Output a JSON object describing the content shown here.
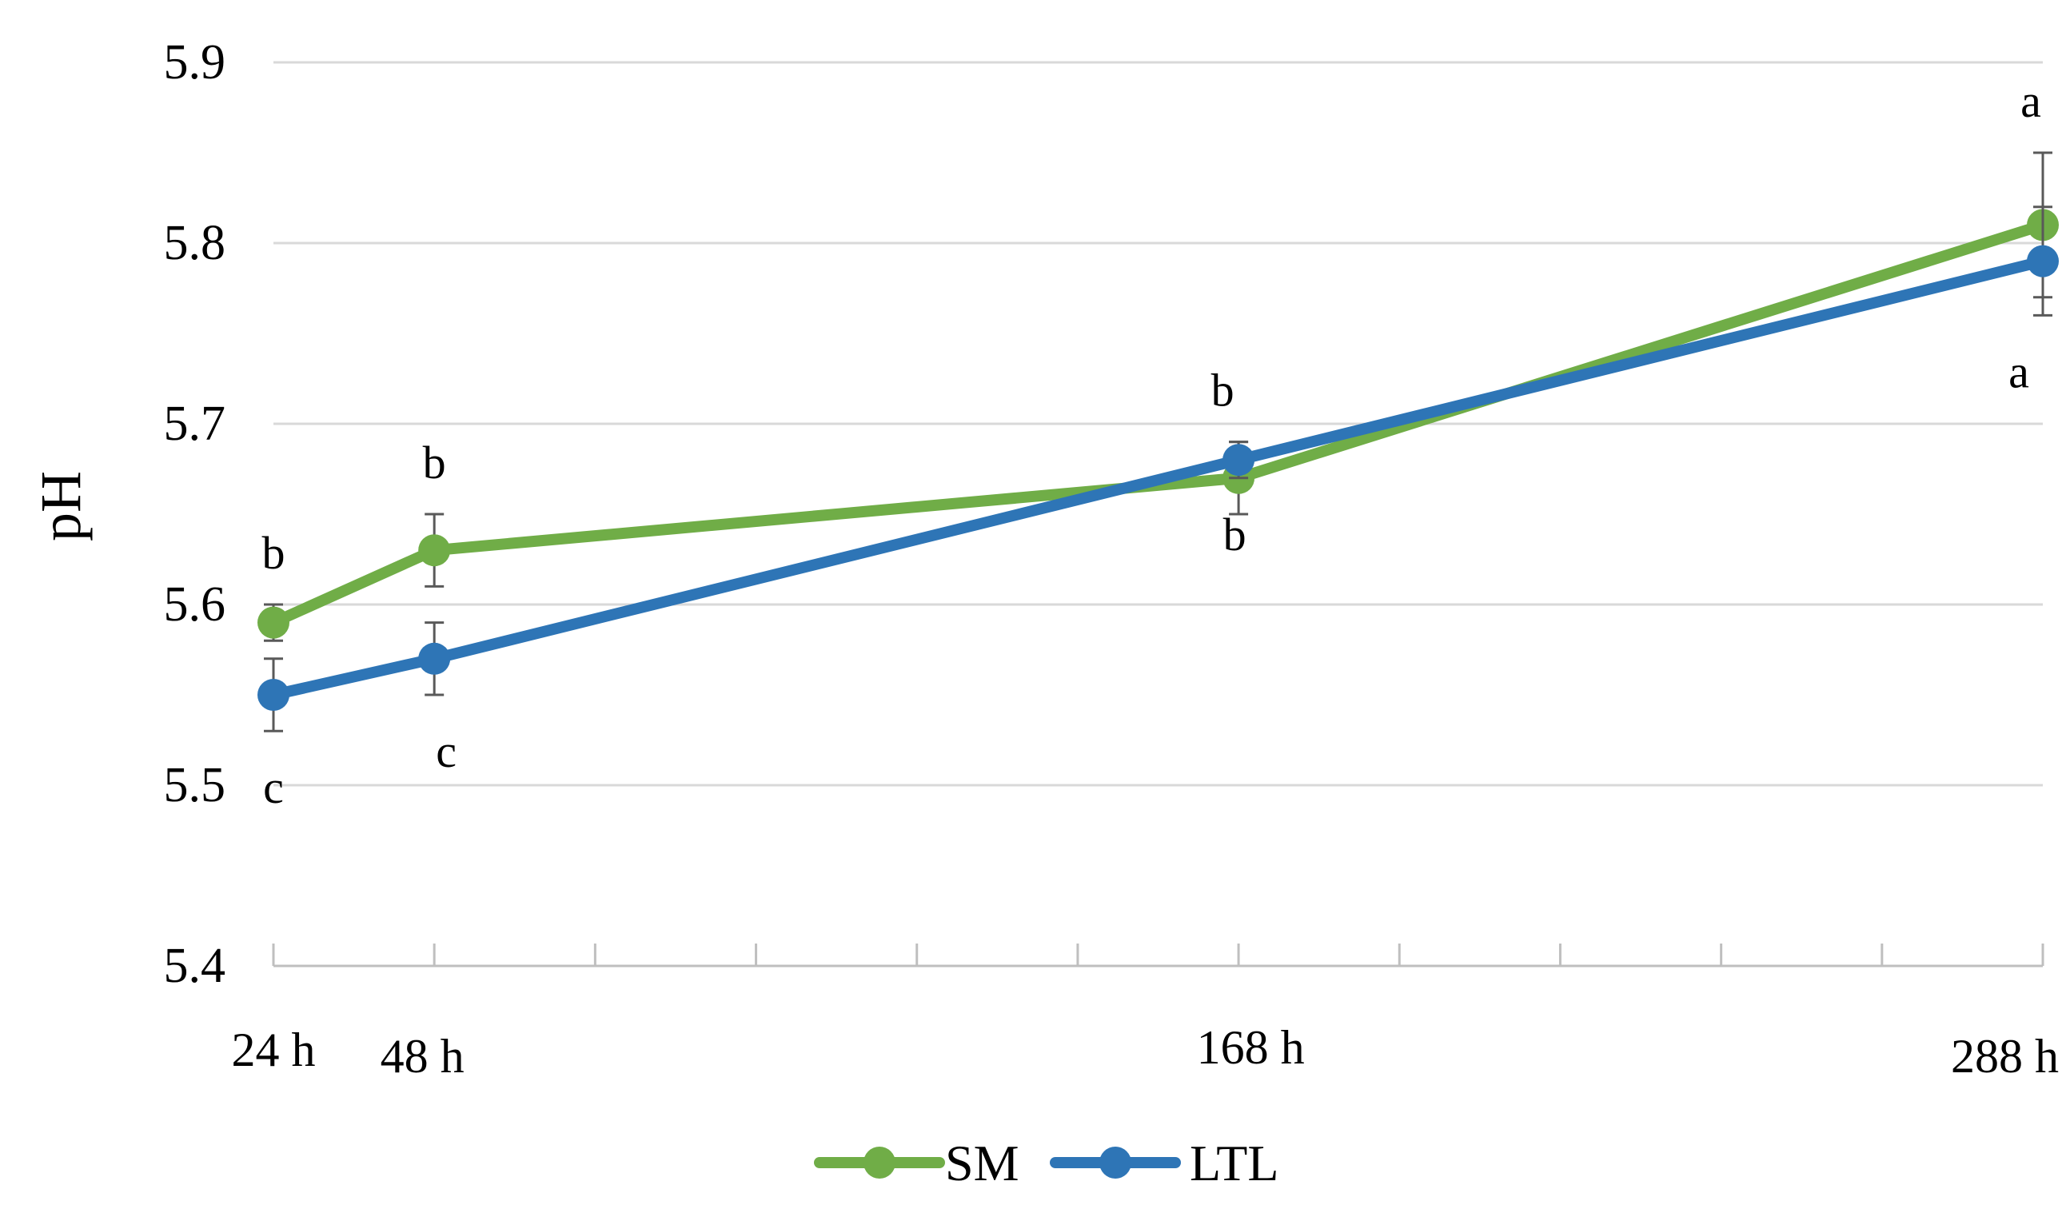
{
  "chart_data": {
    "type": "line",
    "title": "",
    "xlabel": "",
    "ylabel": "pH",
    "ylim": [
      5.4,
      5.9
    ],
    "yticks": [
      "5.4",
      "5.5",
      "5.6",
      "5.7",
      "5.8",
      "5.9"
    ],
    "xlim": [
      24,
      288
    ],
    "x": [
      24,
      48,
      168,
      288
    ],
    "categories": [
      "24 h",
      "48 h",
      "168 h",
      "288 h"
    ],
    "x_minor_ticks": [
      24,
      48,
      72,
      96,
      120,
      144,
      168,
      192,
      216,
      240,
      264,
      288
    ],
    "grid": true,
    "legend_position": "bottom-center",
    "series": [
      {
        "name": "SM",
        "color": "#70AD47",
        "values": [
          5.59,
          5.63,
          5.67,
          5.81
        ],
        "errors": [
          0.01,
          0.02,
          0.02,
          0.04
        ],
        "significance": [
          "b",
          "b",
          "b",
          "a"
        ],
        "label_side": "above"
      },
      {
        "name": "LTL",
        "color": "#2E75B6",
        "values": [
          5.55,
          5.57,
          5.68,
          5.79
        ],
        "errors": [
          0.02,
          0.02,
          0.01,
          0.03
        ],
        "significance": [
          "c",
          "c",
          "b",
          "a"
        ],
        "label_side": "below"
      }
    ],
    "colors": {
      "grid": "#D9D9D9",
      "axis": "#BFBFBF",
      "error_bar": "#595959"
    }
  }
}
